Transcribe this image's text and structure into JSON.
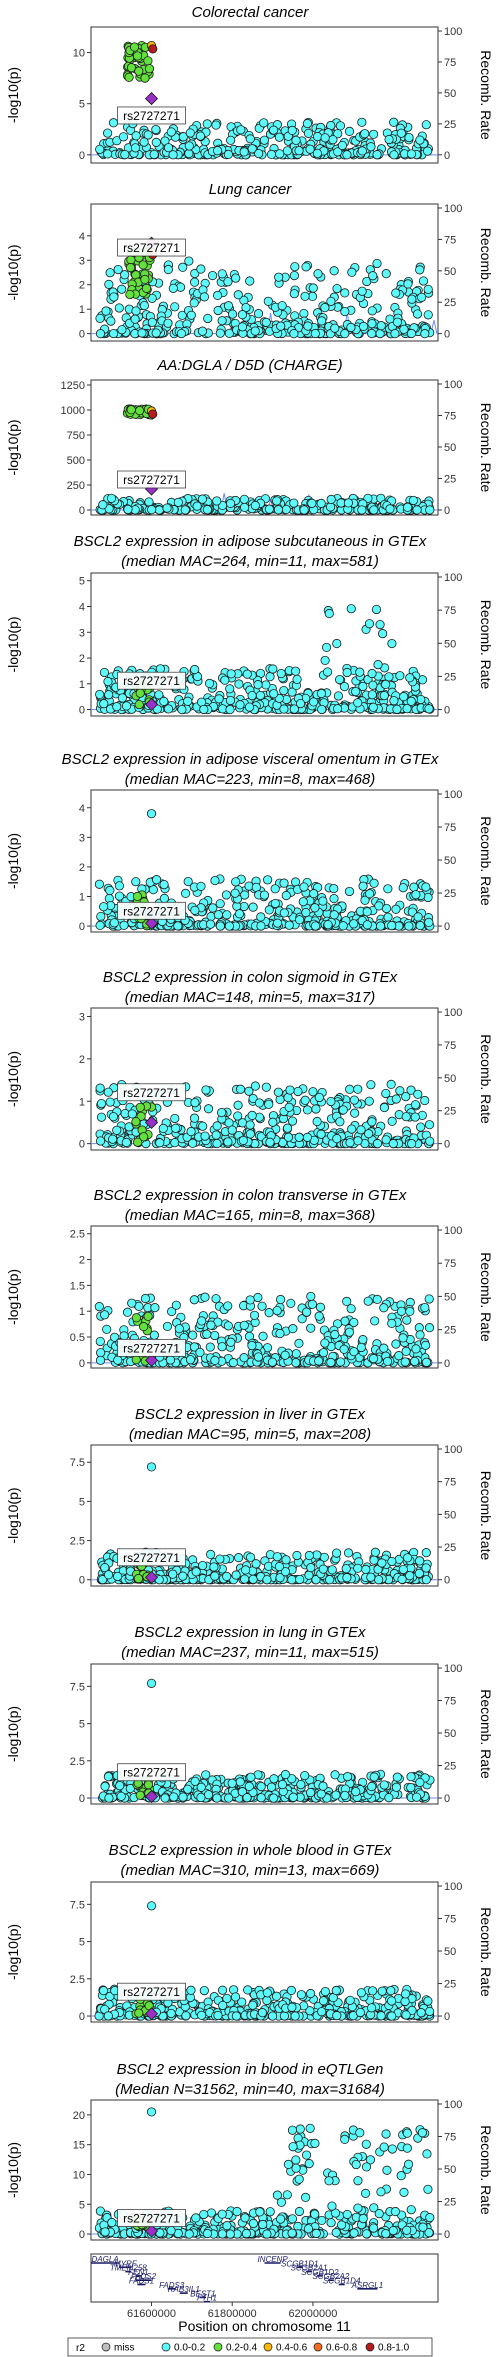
{
  "chart_data": [
    {
      "type": "scatter",
      "title": [
        "Colorectal cancer"
      ],
      "ylabel": "-log10(p)",
      "y2label": "Recomb. Rate",
      "yticks": [
        0,
        5,
        10
      ],
      "y2ticks": [
        0,
        25,
        50,
        75,
        100
      ],
      "ylim": [
        -0.8,
        12.5
      ],
      "lead_snp": "rs2727271",
      "lead_x": 61600000,
      "lead_y": 5.5,
      "snp_label_y": 3.8,
      "recomb_peaks": []
    },
    {
      "type": "scatter",
      "title": [
        "Lung cancer"
      ],
      "ylabel": "-log10(p)",
      "y2label": "Recomb. Rate",
      "yticks": [
        0,
        1,
        2,
        3,
        4
      ],
      "y2ticks": [
        0,
        25,
        50,
        75,
        100
      ],
      "ylim": [
        -0.3,
        5.3
      ],
      "lead_snp": "rs2727271",
      "lead_x": 61600000,
      "lead_y": 3.7,
      "snp_label_y": 3.5,
      "recomb_peaks": [
        61895000,
        61990000,
        62085000,
        62150000,
        62220000,
        62300000
      ]
    },
    {
      "type": "scatter",
      "title": [
        "AA:DGLA / D5D (CHARGE)"
      ],
      "ylabel": "-log10(p)",
      "y2label": "Recomb. Rate",
      "yticks": [
        0,
        250,
        500,
        750,
        1000,
        1250
      ],
      "y2ticks": [
        0,
        25,
        50,
        75,
        100
      ],
      "ylim": [
        -50,
        1300
      ],
      "lead_snp": "rs2727271",
      "lead_x": 61600000,
      "lead_y": 210,
      "snp_label_y": 300,
      "recomb_peaks": [
        61780000,
        61895000,
        61990000
      ]
    },
    {
      "type": "scatter",
      "title": [
        "BSCL2 expression in adipose subcutaneous in GTEx",
        "(median MAC=264, min=11, max=581)"
      ],
      "ylabel": "-log10(p)",
      "y2label": "Recomb. Rate",
      "yticks": [
        0,
        1,
        2,
        3,
        4,
        5
      ],
      "y2ticks": [
        0,
        25,
        50,
        75,
        100
      ],
      "ylim": [
        -0.25,
        5.3
      ],
      "lead_snp": "rs2727271",
      "lead_x": 61600000,
      "lead_y": 0.2,
      "snp_label_y": 1.1,
      "recomb_peaks": []
    },
    {
      "type": "scatter",
      "title": [
        "BSCL2 expression in adipose visceral omentum in GTEx",
        "(median MAC=223, min=8, max=468)"
      ],
      "ylabel": "-log10(p)",
      "y2label": "Recomb. Rate",
      "yticks": [
        0,
        1,
        2,
        3,
        4
      ],
      "y2ticks": [
        0,
        25,
        50,
        75,
        100
      ],
      "ylim": [
        -0.2,
        4.6
      ],
      "lead_snp": "rs2727271",
      "lead_x": 61600000,
      "lead_y": 0.1,
      "snp_label_y": 0.5,
      "recomb_peaks": []
    },
    {
      "type": "scatter",
      "title": [
        "BSCL2 expression in colon sigmoid in GTEx",
        "(median MAC=148, min=5, max=317)"
      ],
      "ylabel": "-log10(p)",
      "y2label": "Recomb. Rate",
      "yticks": [
        0,
        1,
        2,
        3
      ],
      "y2ticks": [
        0,
        25,
        50,
        75,
        100
      ],
      "ylim": [
        -0.15,
        3.2
      ],
      "lead_snp": "rs2727271",
      "lead_x": 61600000,
      "lead_y": 0.5,
      "snp_label_y": 1.2,
      "recomb_peaks": []
    },
    {
      "type": "scatter",
      "title": [
        "BSCL2 expression in colon transverse in GTEx",
        "(median MAC=165, min=8, max=368)"
      ],
      "ylabel": "-log10(p)",
      "y2label": "Recomb. Rate",
      "yticks": [
        0,
        0.5,
        1,
        1.5,
        2,
        2.5
      ],
      "y2ticks": [
        0,
        25,
        50,
        75,
        100
      ],
      "ylim": [
        -0.1,
        2.65
      ],
      "lead_snp": "rs2727271",
      "lead_x": 61600000,
      "lead_y": 0.05,
      "snp_label_y": 0.28,
      "recomb_peaks": []
    },
    {
      "type": "scatter",
      "title": [
        "BSCL2 expression in liver in GTEx",
        "(median MAC=95, min=5, max=208)"
      ],
      "ylabel": "-log10(p)",
      "y2label": "Recomb. Rate",
      "yticks": [
        0,
        2.5,
        5,
        7.5
      ],
      "y2ticks": [
        0,
        25,
        50,
        75,
        100
      ],
      "ylim": [
        -0.4,
        8.6
      ],
      "lead_snp": "rs2727271",
      "lead_x": 61600000,
      "lead_y": 0.15,
      "snp_label_y": 1.4,
      "recomb_peaks": []
    },
    {
      "type": "scatter",
      "title": [
        "BSCL2 expression in lung in GTEx",
        "(median MAC=237, min=11, max=515)"
      ],
      "ylabel": "-log10(p)",
      "y2label": "Recomb. Rate",
      "yticks": [
        0,
        2.5,
        5,
        7.5
      ],
      "y2ticks": [
        0,
        25,
        50,
        75,
        100
      ],
      "ylim": [
        -0.4,
        9.0
      ],
      "lead_snp": "rs2727271",
      "lead_x": 61600000,
      "lead_y": 0.1,
      "snp_label_y": 1.7,
      "recomb_peaks": []
    },
    {
      "type": "scatter",
      "title": [
        "BSCL2 expression in whole blood in GTEx",
        "(median MAC=310, min=13, max=669)"
      ],
      "ylabel": "-log10(p)",
      "y2label": "Recomb. Rate",
      "yticks": [
        0,
        2.5,
        5,
        7.5
      ],
      "y2ticks": [
        0,
        25,
        50,
        75,
        100
      ],
      "ylim": [
        -0.4,
        9.0
      ],
      "lead_snp": "rs2727271",
      "lead_x": 61600000,
      "lead_y": 0.15,
      "snp_label_y": 1.6,
      "recomb_peaks": []
    },
    {
      "type": "scatter",
      "title": [
        "BSCL2 expression in blood in eQTLGen",
        "(Median N=31562, min=40, max=31684)"
      ],
      "ylabel": "-log10(p)",
      "y2label": "Recomb. Rate",
      "yticks": [
        0,
        5,
        10,
        15,
        20
      ],
      "y2ticks": [
        0,
        25,
        50,
        75,
        100
      ],
      "ylim": [
        -1,
        22.5
      ],
      "lead_snp": "rs2727271",
      "lead_x": 61600000,
      "lead_y": 0.5,
      "snp_label_y": 2.6,
      "recomb_peaks": []
    }
  ],
  "genes": {
    "xlim": [
      61450000,
      62310000
    ],
    "xticks": [
      61600000,
      61800000,
      62000000
    ],
    "xlabel": "Position on chromosome 11",
    "items": [
      {
        "name": "DAGLA",
        "start": 61450000,
        "end": 61520000,
        "row": 0
      },
      {
        "name": "INCENP",
        "start": 61880000,
        "end": 61920000,
        "row": 0
      },
      {
        "name": "MYRF",
        "start": 61520000,
        "end": 61550000,
        "row": 1
      },
      {
        "name": "SCGB1D1",
        "start": 61960000,
        "end": 61970000,
        "row": 1
      },
      {
        "name": "TMEM258",
        "start": 61535000,
        "end": 61540000,
        "row": 2
      },
      {
        "name": "SCGB2A1",
        "start": 61983000,
        "end": 61990000,
        "row": 2
      },
      {
        "name": "FEN1",
        "start": 61560000,
        "end": 61565000,
        "row": 3
      },
      {
        "name": "SCGB1D2",
        "start": 62010000,
        "end": 62015000,
        "row": 3
      },
      {
        "name": "FADS2",
        "start": 61560000,
        "end": 61600000,
        "row": 4
      },
      {
        "name": "SCGB2A2",
        "start": 62037000,
        "end": 62040000,
        "row": 4
      },
      {
        "name": "FADS1",
        "start": 61565000,
        "end": 61585000,
        "row": 5
      },
      {
        "name": "SCGB1D4",
        "start": 62064000,
        "end": 62068000,
        "row": 5
      },
      {
        "name": "FADS3",
        "start": 61640000,
        "end": 61660000,
        "row": 6
      },
      {
        "name": "ASRGL1",
        "start": 62110000,
        "end": 62160000,
        "row": 6
      },
      {
        "name": "RAB3IL1",
        "start": 61670000,
        "end": 61690000,
        "row": 7
      },
      {
        "name": "BEST1",
        "start": 61720000,
        "end": 61735000,
        "row": 8
      },
      {
        "name": "FTH1",
        "start": 61730000,
        "end": 61735000,
        "row": 9
      }
    ]
  },
  "legend": {
    "title": "r2",
    "entries": [
      {
        "label": "miss",
        "color": "#BEBEBE"
      },
      {
        "label": "0.0-0.2",
        "color": "#5CFAFA"
      },
      {
        "label": "0.2-0.4",
        "color": "#64E13C"
      },
      {
        "label": "0.4-0.6",
        "color": "#F8B900"
      },
      {
        "label": "0.6-0.8",
        "color": "#F26E1E"
      },
      {
        "label": "0.8-1.0",
        "color": "#B71B1B"
      }
    ]
  },
  "colors": {
    "point_low": "#5CFAFA",
    "point_mid": "#64E13C",
    "point_orange": "#F8B900",
    "point_red": "#B71B1B",
    "lead": "#9B30C8",
    "recomb": "#6F8BF5",
    "gene": "#1a1a66"
  }
}
